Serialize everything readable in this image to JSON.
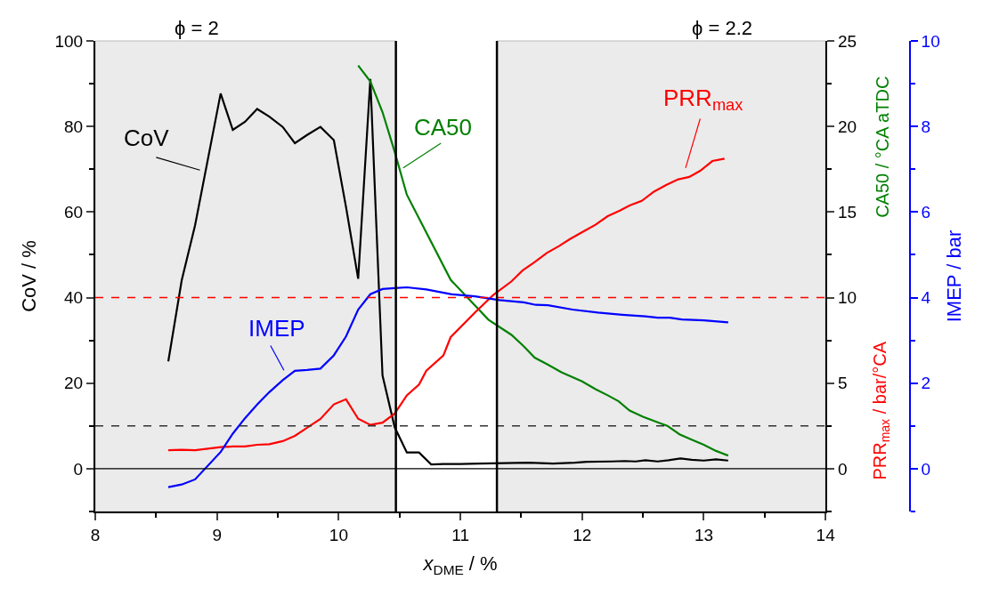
{
  "chart_data": {
    "type": "line",
    "xlabel": "x$_{DME}$ / %",
    "ylabel": "CoV / %",
    "y2label": "PRR$_{max}$ / bar/°CA",
    "y3label": "IMEP / bar",
    "annotations": [
      "CA50 / °CA aTDC"
    ],
    "xlim": [
      8,
      14
    ],
    "xticks": [
      8,
      9,
      10,
      11,
      12,
      13,
      14
    ],
    "ylim": [
      -10,
      100
    ],
    "yticks": [
      0,
      20,
      40,
      60,
      80,
      100
    ],
    "y2lim": [
      -2.5,
      25
    ],
    "y2ticks": [
      0,
      5,
      10,
      15,
      20,
      25
    ],
    "y3lim": [
      -1,
      10
    ],
    "y3ticks": [
      0,
      2,
      4,
      6,
      8,
      10
    ],
    "grid": false,
    "legend": false,
    "marker": "none",
    "line_style": "solid",
    "series": [
      {
        "name": "CoV",
        "color": "#000000",
        "axis": "y",
        "x": [
          8.6,
          8.71,
          8.82,
          9.03,
          9.13,
          9.23,
          9.33,
          9.43,
          9.54,
          9.64,
          9.74,
          9.85,
          9.96,
          10.06,
          10.16,
          10.26,
          10.36,
          10.46,
          10.56,
          10.66,
          10.76,
          10.86,
          11.0,
          11.16,
          11.56,
          11.76,
          11.94,
          12.04,
          12.24,
          12.35,
          12.44,
          12.52,
          12.62,
          12.71,
          12.81,
          12.9,
          13.0,
          13.1,
          13.2
        ],
        "values": [
          25.1,
          44.0,
          56.9,
          87.7,
          79.2,
          81.1,
          84.1,
          82.3,
          79.9,
          76.1,
          78.0,
          79.9,
          76.8,
          61.2,
          44.4,
          91.1,
          21.8,
          9.7,
          3.8,
          3.8,
          1.0,
          1.1,
          1.1,
          1.2,
          1.4,
          1.2,
          1.4,
          1.6,
          1.7,
          1.8,
          1.7,
          2.0,
          1.7,
          2.0,
          2.4,
          2.1,
          1.9,
          2.2,
          1.9
        ]
      },
      {
        "name": "CA50",
        "color": "#008000",
        "axis": "y2",
        "x": [
          10.16,
          10.26,
          10.36,
          10.46,
          10.56,
          10.92,
          11.23,
          11.42,
          11.52,
          11.61,
          11.72,
          11.83,
          12.0,
          12.11,
          12.21,
          12.3,
          12.39,
          12.5,
          12.63,
          12.7,
          12.8,
          12.9,
          13.0,
          13.1,
          13.2
        ],
        "values": [
          23.56,
          22.63,
          20.84,
          18.52,
          16.01,
          11.04,
          8.71,
          7.82,
          7.16,
          6.49,
          6.08,
          5.64,
          5.1,
          4.65,
          4.29,
          3.94,
          3.4,
          3.04,
          2.69,
          2.51,
          2.01,
          1.7,
          1.4,
          1.04,
          0.77
        ]
      },
      {
        "name": "IMEP",
        "color": "#0000ff",
        "axis": "y3",
        "x": [
          8.6,
          8.71,
          8.82,
          9.03,
          9.13,
          9.23,
          9.33,
          9.43,
          9.54,
          9.64,
          9.74,
          9.85,
          9.96,
          10.06,
          10.16,
          10.26,
          10.36,
          10.46,
          10.56,
          10.72,
          10.92,
          11.12,
          11.32,
          11.52,
          11.62,
          11.72,
          11.92,
          12.13,
          12.33,
          12.52,
          12.62,
          12.72,
          12.82,
          13.0,
          13.2
        ],
        "values": [
          -0.43,
          -0.37,
          -0.25,
          0.39,
          0.82,
          1.18,
          1.5,
          1.79,
          2.07,
          2.29,
          2.31,
          2.34,
          2.65,
          3.09,
          3.72,
          4.08,
          4.2,
          4.22,
          4.24,
          4.19,
          4.08,
          4.03,
          3.94,
          3.89,
          3.83,
          3.82,
          3.72,
          3.65,
          3.6,
          3.56,
          3.53,
          3.53,
          3.49,
          3.47,
          3.42
        ]
      },
      {
        "name": "PRR$_{max}$",
        "color": "#ff0000",
        "axis": "y2",
        "x": [
          8.6,
          8.71,
          8.82,
          9.03,
          9.13,
          9.23,
          9.33,
          9.43,
          9.54,
          9.64,
          9.74,
          9.85,
          9.96,
          10.06,
          10.16,
          10.26,
          10.36,
          10.46,
          10.56,
          10.66,
          10.72,
          10.86,
          10.92,
          11.12,
          11.27,
          11.42,
          11.51,
          11.61,
          11.71,
          11.81,
          11.9,
          12.01,
          12.11,
          12.21,
          12.31,
          12.39,
          12.49,
          12.59,
          12.69,
          12.79,
          12.88,
          12.97,
          13.07,
          13.17
        ],
        "values": [
          1.08,
          1.11,
          1.08,
          1.26,
          1.3,
          1.3,
          1.4,
          1.43,
          1.61,
          1.92,
          2.39,
          2.91,
          3.76,
          4.06,
          2.92,
          2.56,
          2.69,
          3.22,
          4.29,
          4.92,
          5.73,
          6.62,
          7.69,
          9.13,
          10.15,
          10.95,
          11.58,
          12.07,
          12.61,
          13.01,
          13.42,
          13.86,
          14.26,
          14.76,
          15.08,
          15.38,
          15.65,
          16.19,
          16.58,
          16.91,
          17.05,
          17.41,
          17.98,
          18.12
        ]
      }
    ],
    "bands": [
      {
        "axis": "x",
        "from": 8,
        "to": 10.47,
        "label": "ϕ = 2",
        "color": "#ebebeb"
      },
      {
        "axis": "x",
        "from": 11.3,
        "to": 14,
        "label": "ϕ = 2.2",
        "color": "#ebebeb"
      }
    ],
    "ref_lines": [
      {
        "axis": "y",
        "value": 0,
        "color": "#000000",
        "line_style": "solid"
      },
      {
        "axis": "y",
        "value": 10,
        "color": "#333333",
        "line_style": "dashed"
      },
      {
        "axis": "y2",
        "value": 10,
        "color": "#ff0000",
        "line_style": "dashed"
      },
      {
        "axis": "x",
        "value": 10.47,
        "color": "#000000",
        "line_style": "solid"
      },
      {
        "axis": "x",
        "value": 11.3,
        "color": "#000000",
        "line_style": "solid"
      }
    ]
  }
}
